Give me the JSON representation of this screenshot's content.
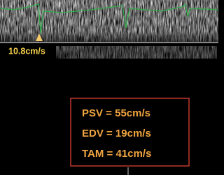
{
  "marker_label": "10.8cm/s",
  "measurements": [
    "PSV = 55cm/s",
    "EDV = 19cm/s",
    "TAM = 41cm/s"
  ]
}
